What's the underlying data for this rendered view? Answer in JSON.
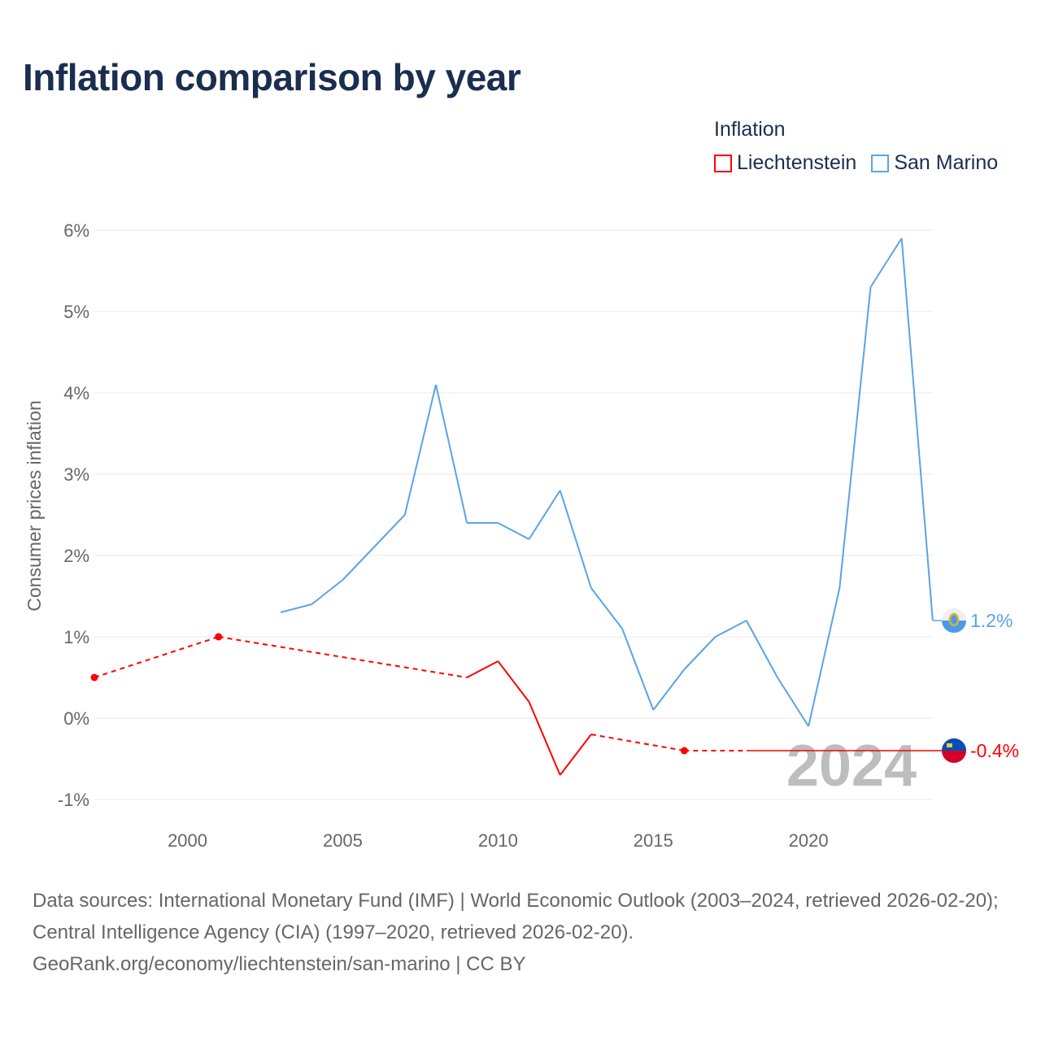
{
  "title": "Inflation comparison by year",
  "legend": {
    "title": "Inflation",
    "items": [
      {
        "name": "Liechtenstein",
        "color": "#ff0000"
      },
      {
        "name": "San Marino",
        "color": "#5ba3e8"
      }
    ]
  },
  "chart_data": {
    "type": "line",
    "ylabel": "Consumer prices inflation",
    "xlabel": "",
    "xlim": [
      1997,
      2024
    ],
    "ylim": [
      -1.2,
      6.2
    ],
    "x_ticks": [
      2000,
      2005,
      2010,
      2015,
      2020
    ],
    "y_ticks": [
      -1,
      0,
      1,
      2,
      3,
      4,
      5,
      6
    ],
    "y_tick_labels": [
      "-1%",
      "0%",
      "1%",
      "2%",
      "3%",
      "4%",
      "5%",
      "6%"
    ],
    "grid": true,
    "year_watermark": "2024",
    "series": [
      {
        "name": "San Marino",
        "color": "#5ba3e8",
        "x": [
          2003,
          2004,
          2005,
          2006,
          2007,
          2008,
          2009,
          2010,
          2011,
          2012,
          2013,
          2014,
          2015,
          2016,
          2017,
          2018,
          2019,
          2020,
          2021,
          2022,
          2023,
          2024
        ],
        "values": [
          1.3,
          1.4,
          1.7,
          2.1,
          2.5,
          4.1,
          2.4,
          2.4,
          2.2,
          2.8,
          1.6,
          1.1,
          0.1,
          0.6,
          1.0,
          1.2,
          0.5,
          -0.1,
          1.6,
          5.3,
          5.9,
          1.2
        ],
        "end_label": "1.2%"
      },
      {
        "name": "Liechtenstein",
        "color": "#ff0000",
        "x": [
          1997,
          2001,
          2009,
          2010,
          2011,
          2012,
          2013,
          2016
        ],
        "values": [
          0.5,
          1.0,
          0.5,
          0.7,
          0.2,
          -0.7,
          -0.2,
          -0.4
        ],
        "end_label": "-0.4%"
      }
    ]
  },
  "footer": {
    "line1": "Data sources: International Monetary Fund (IMF) | World Economic Outlook (2003–2024, retrieved 2026-02-20); Central Intelligence Agency (CIA) (1997–2020, retrieved 2026-02-20).",
    "line2": "GeoRank.org/economy/liechtenstein/san-marino | CC BY"
  }
}
